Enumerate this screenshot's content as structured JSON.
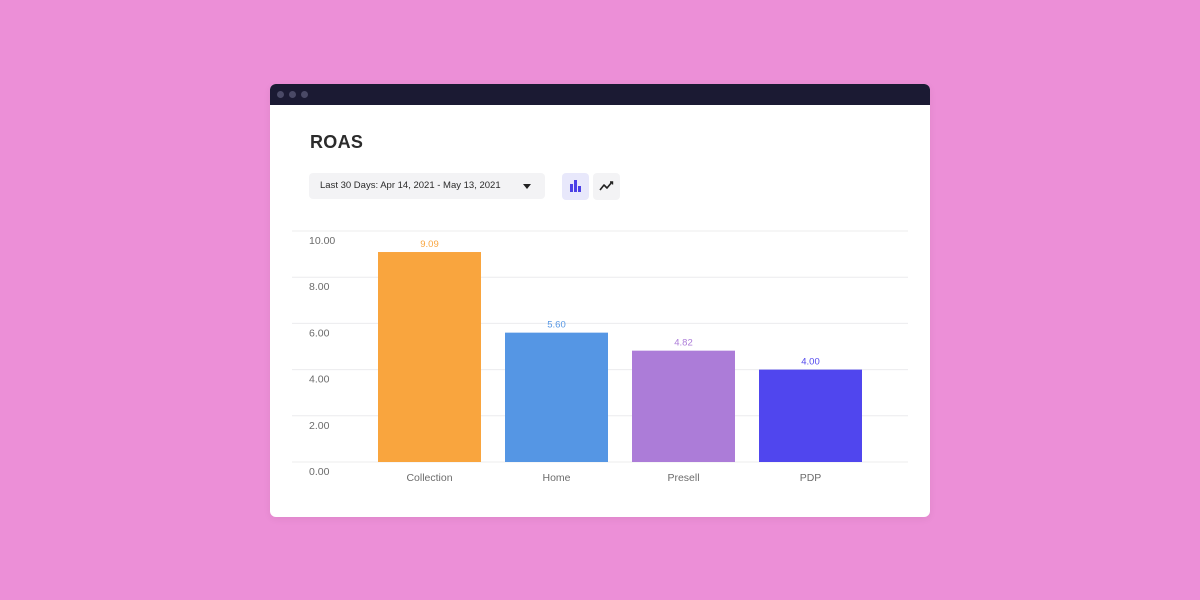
{
  "window": {
    "title": "ROAS",
    "date_range": "Last 30 Days: Apr 14, 2021 - May 13, 2021",
    "view_toggle": {
      "bar_icon": "bar-chart-icon",
      "line_icon": "line-chart-icon",
      "active": "bar"
    }
  },
  "colors": {
    "background": "#ec8fd7",
    "titlebar": "#1b1a33",
    "active_toggle": "#e8e8fb"
  },
  "chart_data": {
    "type": "bar",
    "title": "ROAS",
    "categories": [
      "Collection",
      "Home",
      "Presell",
      "PDP"
    ],
    "values": [
      9.09,
      5.6,
      4.82,
      4.0
    ],
    "value_labels": [
      "9.09",
      "5.60",
      "4.82",
      "4.00"
    ],
    "colors": [
      "#f9a53e",
      "#5596e4",
      "#ac7cd8",
      "#5046ee"
    ],
    "ylim": [
      0,
      10
    ],
    "yticks": [
      "0.00",
      "2.00",
      "4.00",
      "6.00",
      "8.00",
      "10.00"
    ],
    "grid": true,
    "legend": "none"
  }
}
